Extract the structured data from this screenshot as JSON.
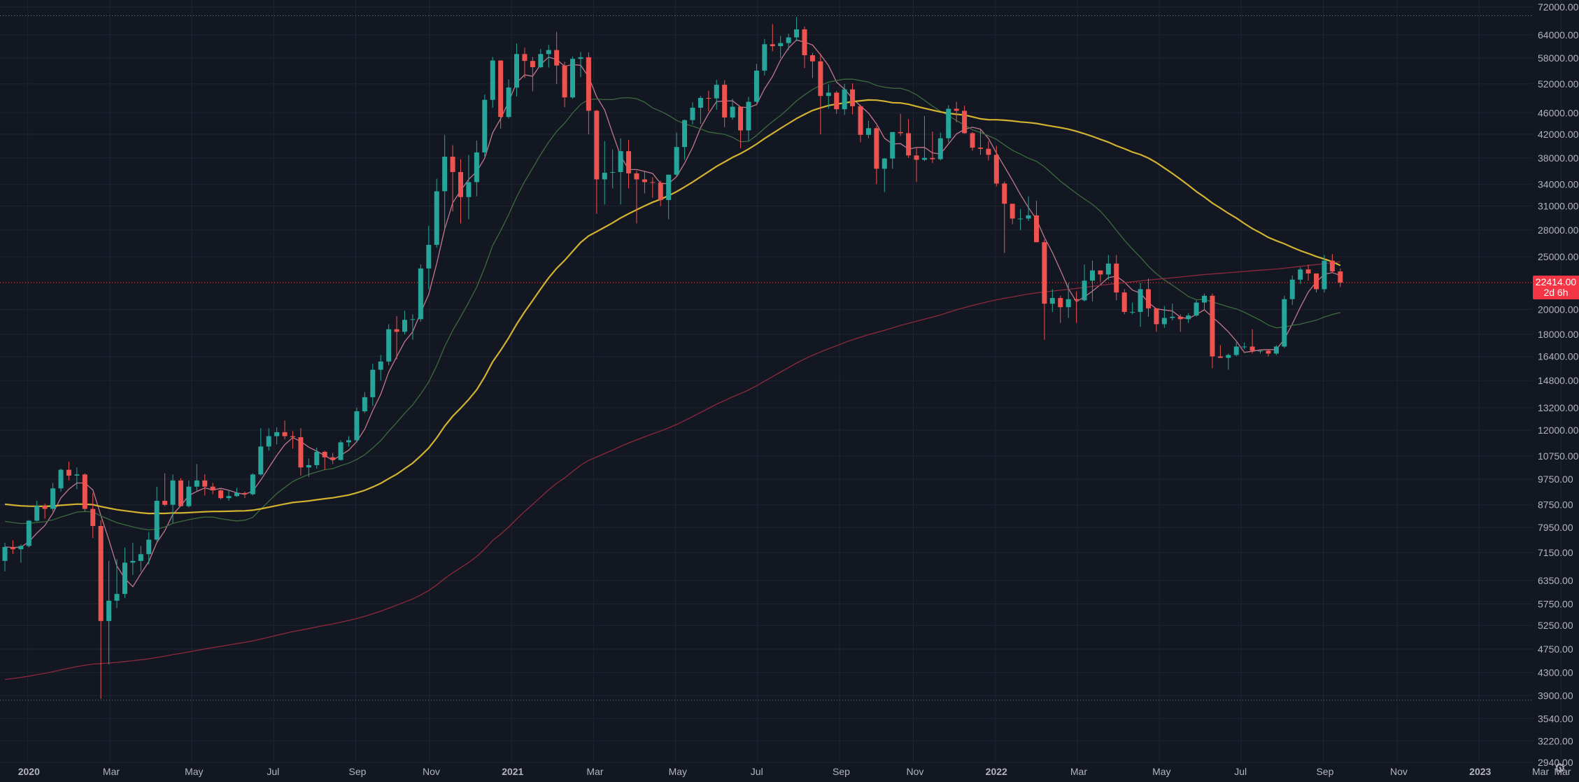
{
  "chart_data": {
    "type": "candlestick",
    "symbol_scale": "log",
    "grid": true,
    "y_ticks": [
      72000,
      64000,
      58000,
      52000,
      46000,
      42000,
      38000,
      34000,
      31000,
      28000,
      25000,
      20000,
      18000,
      16400,
      14800,
      13200,
      12000,
      10750,
      9750,
      8750,
      7950,
      7150,
      6350,
      5750,
      5250,
      4750,
      4300,
      3900,
      3540,
      3220,
      2940
    ],
    "y_tick_labels": [
      "72000.00",
      "64000.00",
      "58000.00",
      "52000.00",
      "46000.00",
      "42000.00",
      "38000.00",
      "34000.00",
      "31000.00",
      "28000.00",
      "25000.00",
      "20000.00",
      "18000.00",
      "16400.00",
      "14800.00",
      "13200.00",
      "12000.00",
      "10750.00",
      "9750.00",
      "8750.00",
      "7950.00",
      "7150.00",
      "6350.00",
      "5750.00",
      "5250.00",
      "4750.00",
      "4300.00",
      "3900.00",
      "3540.00",
      "3220.00",
      "2940.00"
    ],
    "x_labels": [
      {
        "text": "2020",
        "year": true,
        "t": 0.2
      },
      {
        "text": "Mar",
        "year": false,
        "t": 2.2
      },
      {
        "text": "May",
        "year": false,
        "t": 4.2
      },
      {
        "text": "Jul",
        "year": false,
        "t": 6.2
      },
      {
        "text": "Sep",
        "year": false,
        "t": 8.2
      },
      {
        "text": "Nov",
        "year": false,
        "t": 10.0
      },
      {
        "text": "2021",
        "year": true,
        "t": 12.0
      },
      {
        "text": "Mar",
        "year": false,
        "t": 14.0
      },
      {
        "text": "May",
        "year": false,
        "t": 16.0
      },
      {
        "text": "Jul",
        "year": false,
        "t": 18.0
      },
      {
        "text": "Sep",
        "year": false,
        "t": 20.0
      },
      {
        "text": "Nov",
        "year": false,
        "t": 21.8
      },
      {
        "text": "2022",
        "year": true,
        "t": 23.8
      },
      {
        "text": "Mar",
        "year": false,
        "t": 25.8
      },
      {
        "text": "May",
        "year": false,
        "t": 27.8
      },
      {
        "text": "Jul",
        "year": false,
        "t": 29.8
      },
      {
        "text": "Sep",
        "year": false,
        "t": 31.8
      },
      {
        "text": "Nov",
        "year": false,
        "t": 33.6
      },
      {
        "text": "2023",
        "year": true,
        "t": 35.6
      },
      {
        "text": "Mar",
        "year": false,
        "t": 37.6
      }
    ],
    "candles": [
      [
        "2019-12-16",
        6900,
        7450,
        6600,
        7320
      ],
      [
        "2019-12-23",
        7320,
        7530,
        7100,
        7250
      ],
      [
        "2019-12-30",
        7250,
        7400,
        6850,
        7350
      ],
      [
        "2020-01-06",
        7350,
        8200,
        7300,
        8180
      ],
      [
        "2020-01-13",
        8180,
        8900,
        8150,
        8710
      ],
      [
        "2020-01-20",
        8710,
        8800,
        8250,
        8600
      ],
      [
        "2020-01-27",
        8600,
        9600,
        8500,
        9380
      ],
      [
        "2020-02-03",
        9380,
        10200,
        9250,
        10150
      ],
      [
        "2020-02-10",
        10150,
        10500,
        9700,
        9900
      ],
      [
        "2020-02-17",
        9900,
        10250,
        9350,
        9950
      ],
      [
        "2020-02-24",
        9950,
        10000,
        8500,
        8600
      ],
      [
        "2020-03-02",
        8600,
        9200,
        7600,
        8000
      ],
      [
        "2020-03-09",
        8000,
        8200,
        3850,
        5350
      ],
      [
        "2020-03-16",
        5350,
        6900,
        4450,
        5830
      ],
      [
        "2020-03-23",
        5830,
        6950,
        5650,
        6000
      ],
      [
        "2020-03-30",
        6000,
        7300,
        5900,
        6850
      ],
      [
        "2020-04-06",
        6850,
        7450,
        6500,
        6900
      ],
      [
        "2020-04-13",
        6900,
        7350,
        6600,
        7100
      ],
      [
        "2020-04-20",
        7100,
        7800,
        6800,
        7550
      ],
      [
        "2020-04-27",
        7550,
        9450,
        7500,
        8900
      ],
      [
        "2020-05-04",
        8900,
        10000,
        8700,
        8750
      ],
      [
        "2020-05-11",
        8750,
        9950,
        8100,
        9700
      ],
      [
        "2020-05-18",
        9700,
        9800,
        8800,
        8700
      ],
      [
        "2020-05-25",
        8700,
        9700,
        8650,
        9450
      ],
      [
        "2020-06-01",
        9450,
        10400,
        9250,
        9700
      ],
      [
        "2020-06-08",
        9700,
        9950,
        9100,
        9450
      ],
      [
        "2020-06-15",
        9450,
        9600,
        9150,
        9300
      ],
      [
        "2020-06-22",
        9300,
        9350,
        8950,
        9000
      ],
      [
        "2020-06-29",
        9000,
        9300,
        8900,
        9080
      ],
      [
        "2020-07-06",
        9080,
        9400,
        9050,
        9200
      ],
      [
        "2020-07-13",
        9200,
        9250,
        9000,
        9150
      ],
      [
        "2020-07-20",
        9150,
        10000,
        9100,
        9950
      ],
      [
        "2020-07-27",
        9950,
        12100,
        9900,
        11200
      ],
      [
        "2020-08-03",
        11200,
        12100,
        11000,
        11700
      ],
      [
        "2020-08-10",
        11700,
        12150,
        11300,
        11900
      ],
      [
        "2020-08-17",
        11900,
        12500,
        11550,
        11700
      ],
      [
        "2020-08-24",
        11700,
        11950,
        11100,
        11650
      ],
      [
        "2020-08-31",
        11650,
        12100,
        9900,
        10250
      ],
      [
        "2020-09-07",
        10250,
        10650,
        9850,
        10350
      ],
      [
        "2020-09-14",
        10350,
        11150,
        10200,
        10950
      ],
      [
        "2020-09-21",
        10950,
        11000,
        10150,
        10700
      ],
      [
        "2020-09-28",
        10700,
        10900,
        10400,
        10580
      ],
      [
        "2020-10-05",
        10580,
        11500,
        10550,
        11400
      ],
      [
        "2020-10-12",
        11400,
        11700,
        11200,
        11500
      ],
      [
        "2020-10-19",
        11500,
        13200,
        11400,
        13000
      ],
      [
        "2020-10-26",
        13000,
        14100,
        12900,
        13800
      ],
      [
        "2020-11-02",
        13800,
        15900,
        13300,
        15500
      ],
      [
        "2020-11-09",
        15500,
        16500,
        14800,
        16050
      ],
      [
        "2020-11-16",
        16050,
        18800,
        15800,
        18400
      ],
      [
        "2020-11-23",
        18400,
        19450,
        16200,
        18200
      ],
      [
        "2020-11-30",
        18200,
        19900,
        18000,
        19150
      ],
      [
        "2020-12-07",
        19150,
        19600,
        17600,
        19200
      ],
      [
        "2020-12-14",
        19200,
        24200,
        19000,
        23800
      ],
      [
        "2020-12-21",
        23800,
        28500,
        21800,
        26300
      ],
      [
        "2020-12-28",
        26300,
        34800,
        26000,
        33000
      ],
      [
        "2021-01-04",
        33000,
        41900,
        28000,
        38200
      ],
      [
        "2021-01-11",
        38200,
        40100,
        30300,
        35800
      ],
      [
        "2021-01-18",
        35800,
        37800,
        28800,
        32200
      ],
      [
        "2021-01-25",
        32200,
        38500,
        29300,
        34300
      ],
      [
        "2021-02-01",
        34300,
        40900,
        32300,
        38900
      ],
      [
        "2021-02-08",
        38900,
        49700,
        38200,
        48600
      ],
      [
        "2021-02-15",
        48600,
        58300,
        47000,
        57400
      ],
      [
        "2021-02-22",
        57400,
        57500,
        43000,
        45200
      ],
      [
        "2021-03-01",
        45200,
        53000,
        44900,
        51200
      ],
      [
        "2021-03-08",
        51200,
        61700,
        49300,
        59000
      ],
      [
        "2021-03-15",
        59000,
        60600,
        53300,
        57300
      ],
      [
        "2021-03-22",
        57300,
        58300,
        50400,
        55800
      ],
      [
        "2021-03-29",
        55800,
        60300,
        55600,
        59000
      ],
      [
        "2021-04-05",
        59000,
        61300,
        55700,
        60000
      ],
      [
        "2021-04-12",
        60000,
        64800,
        52000,
        56200
      ],
      [
        "2021-04-19",
        56200,
        57100,
        47100,
        49100
      ],
      [
        "2021-04-26",
        49100,
        58400,
        48800,
        57800
      ],
      [
        "2021-05-03",
        57800,
        59500,
        53500,
        58200
      ],
      [
        "2021-05-10",
        58200,
        59400,
        42000,
        46400
      ],
      [
        "2021-05-17",
        46400,
        46600,
        30000,
        34700
      ],
      [
        "2021-05-24",
        34700,
        40800,
        31200,
        35700
      ],
      [
        "2021-05-31",
        35700,
        39400,
        33400,
        35800
      ],
      [
        "2021-06-07",
        35800,
        41300,
        31200,
        39100
      ],
      [
        "2021-06-14",
        39100,
        41000,
        33400,
        35600
      ],
      [
        "2021-06-21",
        35600,
        36000,
        28800,
        34700
      ],
      [
        "2021-06-28",
        34700,
        36000,
        32700,
        34300
      ],
      [
        "2021-07-05",
        34300,
        35000,
        32100,
        34200
      ],
      [
        "2021-07-12",
        34200,
        34500,
        31000,
        31800
      ],
      [
        "2021-07-19",
        31800,
        35400,
        29300,
        35400
      ],
      [
        "2021-07-26",
        35400,
        42300,
        35200,
        39800
      ],
      [
        "2021-08-02",
        39800,
        44700,
        37700,
        44600
      ],
      [
        "2021-08-09",
        44600,
        48100,
        43800,
        47000
      ],
      [
        "2021-08-16",
        47000,
        49400,
        43900,
        49000
      ],
      [
        "2021-08-23",
        49000,
        50500,
        46300,
        48900
      ],
      [
        "2021-08-30",
        48900,
        52900,
        46600,
        51800
      ],
      [
        "2021-09-06",
        51800,
        52800,
        43300,
        45100
      ],
      [
        "2021-09-13",
        45100,
        48800,
        44700,
        47200
      ],
      [
        "2021-09-20",
        47200,
        47300,
        39600,
        42700
      ],
      [
        "2021-09-27",
        42700,
        49200,
        40800,
        48200
      ],
      [
        "2021-10-04",
        48200,
        56600,
        48000,
        55000
      ],
      [
        "2021-10-11",
        55000,
        62900,
        53900,
        61500
      ],
      [
        "2021-10-18",
        61500,
        67000,
        59700,
        61000
      ],
      [
        "2021-10-25",
        61000,
        63700,
        58000,
        61800
      ],
      [
        "2021-11-01",
        61800,
        64300,
        60000,
        63300
      ],
      [
        "2021-11-08",
        63300,
        69000,
        62300,
        65500
      ],
      [
        "2021-11-15",
        65500,
        66300,
        55600,
        58700
      ],
      [
        "2021-11-22",
        58700,
        59300,
        53300,
        57200
      ],
      [
        "2021-11-29",
        57200,
        59100,
        42000,
        49400
      ],
      [
        "2021-12-06",
        49400,
        51900,
        46800,
        50100
      ],
      [
        "2021-12-13",
        50100,
        50500,
        45800,
        46700
      ],
      [
        "2021-12-20",
        46700,
        52000,
        45600,
        50800
      ],
      [
        "2021-12-27",
        50800,
        52100,
        45700,
        47300
      ],
      [
        "2022-01-03",
        47300,
        47600,
        40600,
        41900
      ],
      [
        "2022-01-10",
        41900,
        44500,
        41300,
        43100
      ],
      [
        "2022-01-17",
        43100,
        43500,
        34000,
        36300
      ],
      [
        "2022-01-24",
        36300,
        38000,
        32900,
        37900
      ],
      [
        "2022-01-31",
        37900,
        42000,
        36300,
        42400
      ],
      [
        "2022-02-07",
        42400,
        45800,
        41700,
        42200
      ],
      [
        "2022-02-14",
        42200,
        44800,
        38000,
        38400
      ],
      [
        "2022-02-21",
        38400,
        39700,
        34300,
        37700
      ],
      [
        "2022-02-28",
        37700,
        45400,
        37500,
        38000
      ],
      [
        "2022-03-07",
        38000,
        42500,
        37200,
        37800
      ],
      [
        "2022-03-14",
        37800,
        42300,
        37600,
        41300
      ],
      [
        "2022-03-21",
        41300,
        47500,
        40600,
        46800
      ],
      [
        "2022-03-28",
        46800,
        48200,
        44200,
        46400
      ],
      [
        "2022-04-04",
        46400,
        47400,
        42100,
        42200
      ],
      [
        "2022-04-11",
        42200,
        42400,
        39200,
        39700
      ],
      [
        "2022-04-18",
        39700,
        42800,
        38500,
        39500
      ],
      [
        "2022-04-25",
        39500,
        40800,
        37600,
        38500
      ],
      [
        "2022-05-02",
        38500,
        40000,
        33700,
        34100
      ],
      [
        "2022-05-09",
        34100,
        34400,
        25400,
        31300
      ],
      [
        "2022-05-16",
        31300,
        31300,
        28700,
        29400
      ],
      [
        "2022-05-23",
        29400,
        30600,
        28000,
        29400
      ],
      [
        "2022-05-30",
        29400,
        32300,
        29100,
        29800
      ],
      [
        "2022-06-06",
        29800,
        31700,
        26600,
        26600
      ],
      [
        "2022-06-13",
        26600,
        26900,
        17600,
        20500
      ],
      [
        "2022-06-20",
        20500,
        21800,
        19800,
        21000
      ],
      [
        "2022-06-27",
        21000,
        21200,
        18900,
        20200
      ],
      [
        "2022-07-04",
        20200,
        22400,
        19300,
        20900
      ],
      [
        "2022-07-11",
        20900,
        21600,
        18900,
        20800
      ],
      [
        "2022-07-18",
        20800,
        24200,
        20700,
        22600
      ],
      [
        "2022-07-25",
        22600,
        24600,
        20700,
        23600
      ],
      [
        "2022-08-01",
        23600,
        23600,
        22500,
        23200
      ],
      [
        "2022-08-08",
        23200,
        25200,
        22700,
        24300
      ],
      [
        "2022-08-15",
        24300,
        25200,
        20800,
        21500
      ],
      [
        "2022-08-22",
        21500,
        21800,
        19600,
        19800
      ],
      [
        "2022-08-29",
        19800,
        20600,
        19600,
        19800
      ],
      [
        "2022-09-05",
        19800,
        22400,
        18600,
        21800
      ],
      [
        "2022-09-12",
        21800,
        22800,
        19400,
        20100
      ],
      [
        "2022-09-19",
        20100,
        20100,
        18200,
        18800
      ],
      [
        "2022-09-26",
        18800,
        20300,
        18500,
        19300
      ],
      [
        "2022-10-03",
        19300,
        20500,
        19100,
        19400
      ],
      [
        "2022-10-10",
        19400,
        19600,
        18200,
        19200
      ],
      [
        "2022-10-17",
        19200,
        19700,
        18900,
        19500
      ],
      [
        "2022-10-24",
        19500,
        20800,
        19400,
        20600
      ],
      [
        "2022-10-31",
        20600,
        21400,
        20000,
        21200
      ],
      [
        "2022-11-07",
        21200,
        21400,
        15600,
        16400
      ],
      [
        "2022-11-14",
        16400,
        17200,
        16300,
        16300
      ],
      [
        "2022-11-21",
        16300,
        16600,
        15500,
        16500
      ],
      [
        "2022-11-28",
        16500,
        17400,
        16400,
        17100
      ],
      [
        "2022-12-05",
        17100,
        17400,
        16900,
        17100
      ],
      [
        "2022-12-12",
        17100,
        18400,
        16600,
        16800
      ],
      [
        "2022-12-19",
        16800,
        16900,
        16600,
        16800
      ],
      [
        "2022-12-26",
        16800,
        16900,
        16400,
        16600
      ],
      [
        "2023-01-02",
        16600,
        17200,
        16500,
        17100
      ],
      [
        "2023-01-09",
        17100,
        21200,
        17000,
        20900
      ],
      [
        "2023-01-16",
        20900,
        23100,
        20400,
        22700
      ],
      [
        "2023-01-23",
        22700,
        23900,
        22300,
        23700
      ],
      [
        "2023-01-30",
        23700,
        24200,
        22600,
        23300
      ],
      [
        "2023-02-06",
        23300,
        23200,
        21500,
        21800
      ],
      [
        "2023-02-13",
        21800,
        25200,
        21500,
        24600
      ],
      [
        "2023-02-20",
        24600,
        25300,
        23400,
        23500
      ],
      [
        "2023-02-27",
        23500,
        23800,
        22000,
        22414
      ]
    ],
    "ma_series": [
      {
        "color": "#c2788c",
        "period": 5
      },
      {
        "color": "#3c6b3f",
        "period": 20
      },
      {
        "color": "#d1b231",
        "period": 50
      },
      {
        "color": "#8c2a3c",
        "period": 200
      }
    ],
    "colors": {
      "up": "#26a69a",
      "down": "#ef5350",
      "grid": "#1f2433",
      "background": "#131722"
    },
    "last_price": {
      "label": "22414.00",
      "countdown": "2d 6h"
    },
    "axis_end_label": "Mar"
  }
}
